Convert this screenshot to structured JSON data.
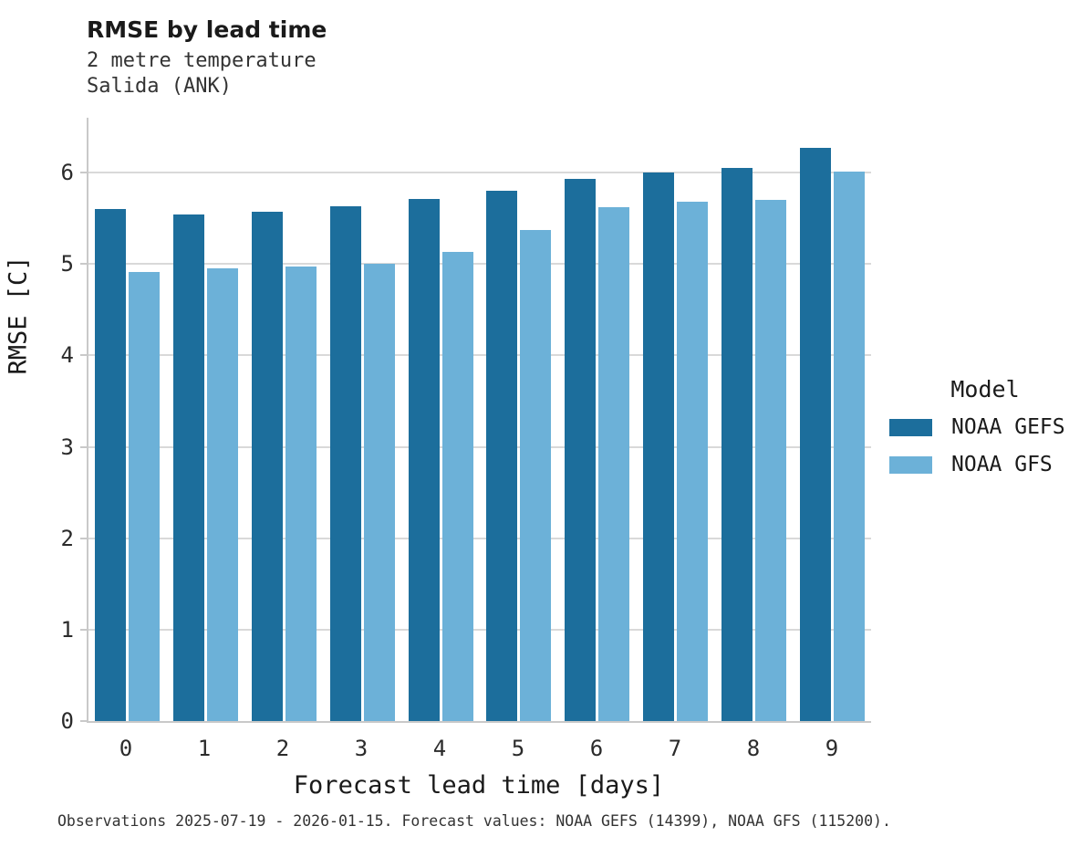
{
  "header": {
    "title": "RMSE by lead time",
    "subtitle1": "2 metre temperature",
    "subtitle2": "Salida (ANK)"
  },
  "legend": {
    "title": "Model"
  },
  "caption": "Observations 2025-07-19 - 2026-01-15. Forecast values: NOAA GEFS (14399), NOAA GFS (115200).",
  "colors": {
    "gefs": "#1c6e9c",
    "gfs": "#6cb1d8",
    "gridline": "#d9d9d9",
    "axis": "#c9c9c9"
  },
  "chart_data": {
    "type": "bar",
    "title": "RMSE by lead time",
    "subtitle": [
      "2 metre temperature",
      "Salida (ANK)"
    ],
    "categories": [
      "0",
      "1",
      "2",
      "3",
      "4",
      "5",
      "6",
      "7",
      "8",
      "9"
    ],
    "series": [
      {
        "name": "NOAA GEFS",
        "color": "#1c6e9c",
        "values": [
          5.6,
          5.54,
          5.57,
          5.63,
          5.71,
          5.8,
          5.93,
          6.0,
          6.05,
          6.27
        ]
      },
      {
        "name": "NOAA GFS",
        "color": "#6cb1d8",
        "values": [
          4.91,
          4.95,
          4.97,
          5.0,
          5.13,
          5.37,
          5.62,
          5.68,
          5.7,
          6.01
        ]
      }
    ],
    "xlabel": "Forecast lead time [days]",
    "ylabel": "RMSE [C]",
    "ylim": [
      0,
      6.6
    ],
    "yticks": [
      0,
      1,
      2,
      3,
      4,
      5,
      6
    ],
    "grid": "horizontal",
    "legend_title": "Model",
    "legend_position": "right"
  }
}
